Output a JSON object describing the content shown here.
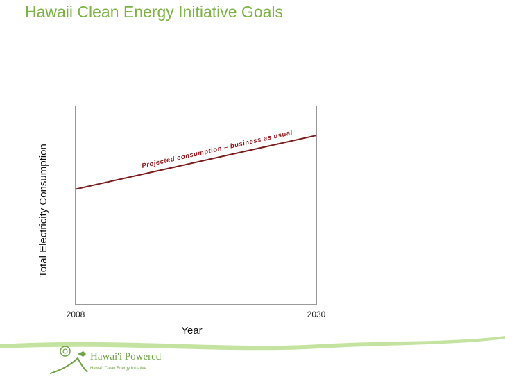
{
  "slide": {
    "title": "Hawaii Clean Energy Initiative Goals"
  },
  "colors": {
    "title": "#7cb342",
    "line": "#7a1c1c",
    "annotation": "#8b1a1a",
    "axis": "#333333",
    "footer_band": "#c5e3a0",
    "logo": "#6da544"
  },
  "chart_data": {
    "type": "line",
    "title": "Hawaii Clean Energy Initiative Goals",
    "xlabel": "Year",
    "ylabel": "Total Electricity Consumption",
    "x_ticks": [
      "2008",
      "2030"
    ],
    "xlim": [
      2008,
      2030
    ],
    "ylim": [
      0,
      100
    ],
    "y_ticks_shown": false,
    "grid": false,
    "legend": "none",
    "series": [
      {
        "x": [
          2008,
          2030
        ],
        "y": [
          58,
          85
        ]
      }
    ],
    "annotations": [
      {
        "text": "Projected consumption – business as usual",
        "series_index": 0
      }
    ]
  },
  "logo": {
    "name_text": "Hawai'i Powered",
    "tagline": "Hawai'i Clean Energy Initiative"
  }
}
